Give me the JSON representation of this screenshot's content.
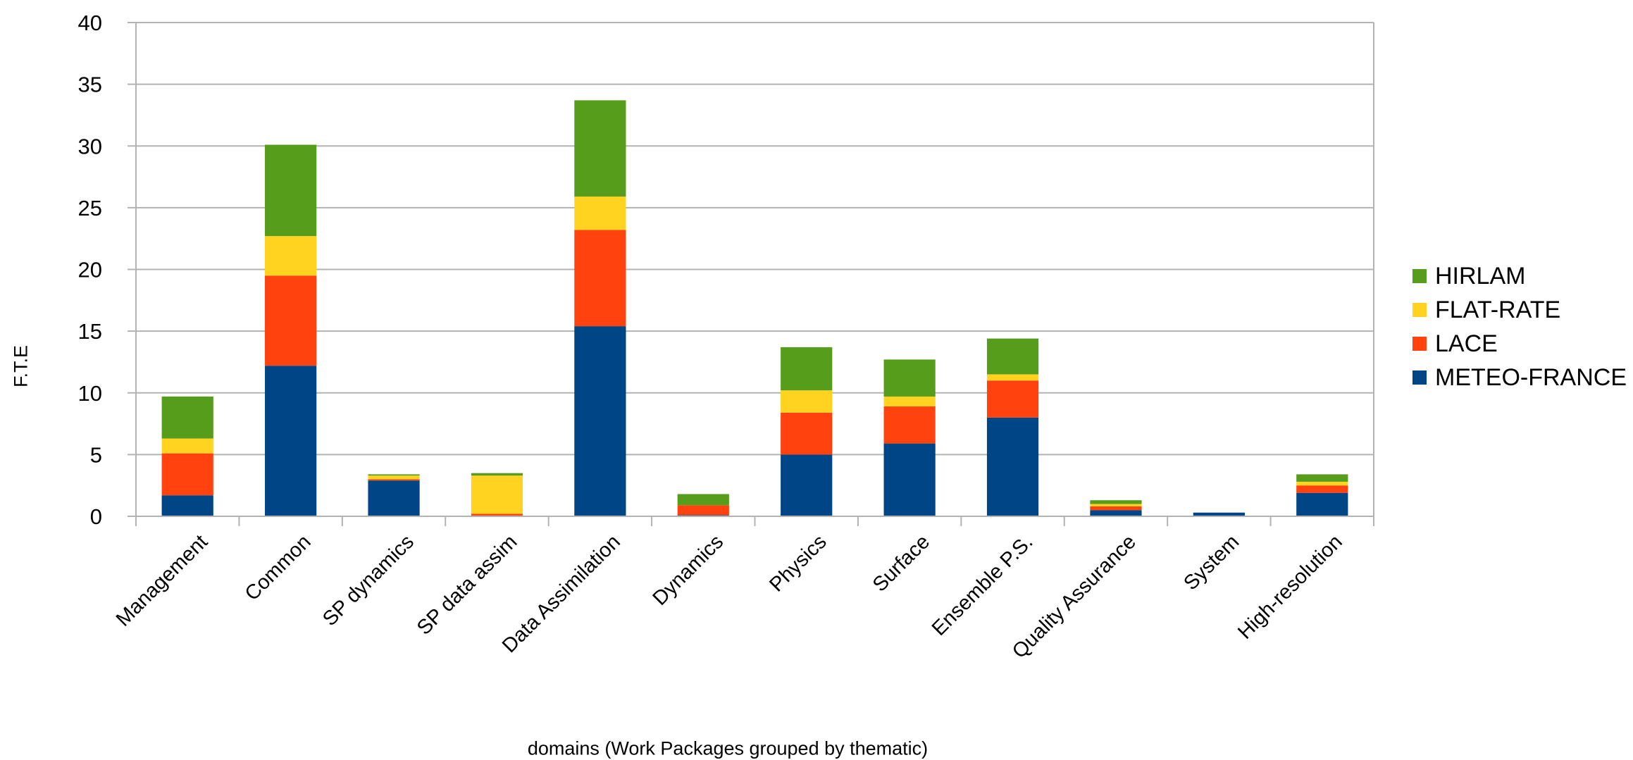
{
  "chart_data": {
    "type": "bar",
    "stacked": true,
    "title": "",
    "xlabel": "domains (Work Packages grouped by thematic)",
    "ylabel": "F.T.E",
    "ylim": [
      0,
      40
    ],
    "yticks": [
      0,
      5,
      10,
      15,
      20,
      25,
      30,
      35,
      40
    ],
    "grid": true,
    "legend_position": "right",
    "categories": [
      "Management",
      "Common",
      "SP dynamics",
      "SP data assim",
      "Data Assimilation",
      "Dynamics",
      "Physics",
      "Surface",
      "Ensemble P.S.",
      "Quality Assurance",
      "System",
      "High-resolution"
    ],
    "series": [
      {
        "name": "METEO-FRANCE",
        "color": "#004586",
        "values": [
          1.7,
          12.2,
          2.9,
          0.05,
          15.4,
          0.1,
          5.0,
          5.9,
          8.0,
          0.5,
          0.3,
          1.9
        ]
      },
      {
        "name": "LACE",
        "color": "#ff420e",
        "values": [
          3.4,
          7.3,
          0.1,
          0.15,
          7.8,
          0.8,
          3.4,
          3.0,
          3.0,
          0.3,
          0.0,
          0.6
        ]
      },
      {
        "name": "FLAT-RATE",
        "color": "#ffd320",
        "values": [
          1.2,
          3.2,
          0.3,
          3.1,
          2.7,
          0.0,
          1.8,
          0.8,
          0.5,
          0.2,
          0.0,
          0.3
        ]
      },
      {
        "name": "HIRLAM",
        "color": "#579d1c",
        "values": [
          3.4,
          7.4,
          0.1,
          0.2,
          7.8,
          0.9,
          3.5,
          3.0,
          2.9,
          0.3,
          0.0,
          0.6
        ]
      }
    ]
  }
}
